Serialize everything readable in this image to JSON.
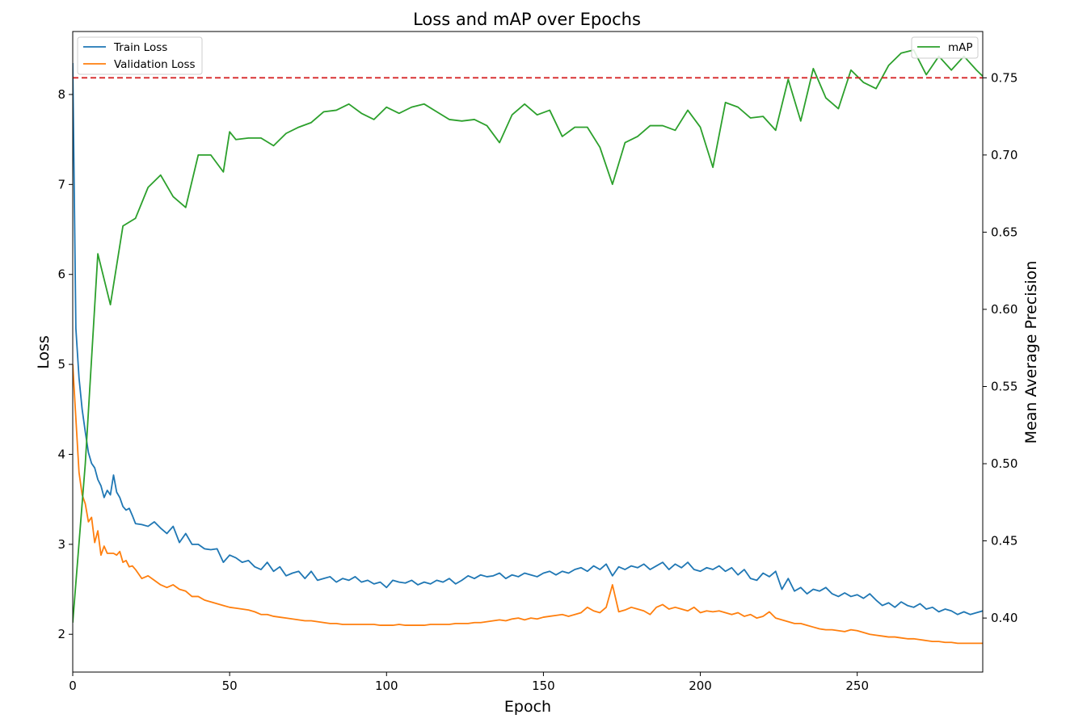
{
  "chart_data": {
    "type": "line",
    "title": "Loss and mAP over Epochs",
    "xlabel": "Epoch",
    "ylabel_left": "Loss",
    "ylabel_right": "Mean Average Precision",
    "xlim": [
      0,
      290
    ],
    "ylim_left": [
      1.58,
      8.7
    ],
    "ylim_right": [
      0.365,
      0.78
    ],
    "xticks": [
      0,
      50,
      100,
      150,
      200,
      250
    ],
    "yticks_left": [
      2,
      3,
      4,
      5,
      6,
      7,
      8
    ],
    "yticks_right": [
      0.4,
      0.45,
      0.5,
      0.55,
      0.6,
      0.65,
      0.7,
      0.75
    ],
    "ytick_labels_right": [
      "0.40",
      "0.45",
      "0.50",
      "0.55",
      "0.60",
      "0.65",
      "0.70",
      "0.75"
    ],
    "grid": false,
    "legend_left_position": "upper-left",
    "legend_right_position": "upper-right",
    "reference_line": {
      "axis": "right",
      "y": 0.75,
      "color": "#d62728",
      "style": "dashed"
    },
    "series_left": [
      {
        "name": "Train Loss",
        "color": "#1f77b4",
        "x": [
          0,
          1,
          2,
          3,
          4,
          5,
          6,
          7,
          8,
          9,
          10,
          11,
          12,
          13,
          14,
          15,
          16,
          17,
          18,
          19,
          20,
          22,
          24,
          26,
          28,
          30,
          32,
          34,
          36,
          38,
          40,
          42,
          44,
          46,
          48,
          50,
          52,
          54,
          56,
          58,
          60,
          62,
          64,
          66,
          68,
          70,
          72,
          74,
          76,
          78,
          80,
          82,
          84,
          86,
          88,
          90,
          92,
          94,
          96,
          98,
          100,
          102,
          104,
          106,
          108,
          110,
          112,
          114,
          116,
          118,
          120,
          122,
          124,
          126,
          128,
          130,
          132,
          134,
          136,
          138,
          140,
          142,
          144,
          146,
          148,
          150,
          152,
          154,
          156,
          158,
          160,
          162,
          164,
          166,
          168,
          170,
          172,
          174,
          176,
          178,
          180,
          182,
          184,
          186,
          188,
          190,
          192,
          194,
          196,
          198,
          200,
          202,
          204,
          206,
          208,
          210,
          212,
          214,
          216,
          218,
          220,
          222,
          224,
          226,
          228,
          230,
          232,
          234,
          236,
          238,
          240,
          242,
          244,
          246,
          248,
          250,
          252,
          254,
          256,
          258,
          260,
          262,
          264,
          266,
          268,
          270,
          272,
          274,
          276,
          278,
          280,
          282,
          284,
          286,
          288,
          290
        ],
        "y": [
          8.35,
          5.4,
          4.85,
          4.5,
          4.25,
          4.02,
          3.9,
          3.85,
          3.72,
          3.65,
          3.52,
          3.6,
          3.55,
          3.77,
          3.58,
          3.52,
          3.42,
          3.38,
          3.4,
          3.32,
          3.23,
          3.22,
          3.2,
          3.25,
          3.18,
          3.12,
          3.2,
          3.02,
          3.12,
          3.0,
          3.0,
          2.95,
          2.94,
          2.95,
          2.8,
          2.88,
          2.85,
          2.8,
          2.82,
          2.75,
          2.72,
          2.8,
          2.7,
          2.75,
          2.65,
          2.68,
          2.7,
          2.62,
          2.7,
          2.6,
          2.62,
          2.64,
          2.58,
          2.62,
          2.6,
          2.64,
          2.58,
          2.6,
          2.56,
          2.58,
          2.52,
          2.6,
          2.58,
          2.57,
          2.6,
          2.55,
          2.58,
          2.56,
          2.6,
          2.58,
          2.62,
          2.56,
          2.6,
          2.65,
          2.62,
          2.66,
          2.64,
          2.65,
          2.68,
          2.62,
          2.66,
          2.64,
          2.68,
          2.66,
          2.64,
          2.68,
          2.7,
          2.66,
          2.7,
          2.68,
          2.72,
          2.74,
          2.7,
          2.76,
          2.72,
          2.78,
          2.65,
          2.75,
          2.72,
          2.76,
          2.74,
          2.78,
          2.72,
          2.76,
          2.8,
          2.72,
          2.78,
          2.74,
          2.8,
          2.72,
          2.7,
          2.74,
          2.72,
          2.76,
          2.7,
          2.74,
          2.66,
          2.72,
          2.62,
          2.6,
          2.68,
          2.64,
          2.7,
          2.5,
          2.62,
          2.48,
          2.52,
          2.45,
          2.5,
          2.48,
          2.52,
          2.45,
          2.42,
          2.46,
          2.42,
          2.44,
          2.4,
          2.45,
          2.38,
          2.32,
          2.35,
          2.3,
          2.36,
          2.32,
          2.3,
          2.34,
          2.28,
          2.3,
          2.25,
          2.28,
          2.26,
          2.22,
          2.25,
          2.22,
          2.24,
          2.26
        ]
      },
      {
        "name": "Validation Loss",
        "color": "#ff7f0e",
        "x": [
          0,
          1,
          2,
          3,
          4,
          5,
          6,
          7,
          8,
          9,
          10,
          11,
          12,
          13,
          14,
          15,
          16,
          17,
          18,
          19,
          20,
          22,
          24,
          26,
          28,
          30,
          32,
          34,
          36,
          38,
          40,
          42,
          44,
          46,
          48,
          50,
          52,
          54,
          56,
          58,
          60,
          62,
          64,
          66,
          68,
          70,
          72,
          74,
          76,
          78,
          80,
          82,
          84,
          86,
          88,
          90,
          92,
          94,
          96,
          98,
          100,
          102,
          104,
          106,
          108,
          110,
          112,
          114,
          116,
          118,
          120,
          122,
          124,
          126,
          128,
          130,
          132,
          134,
          136,
          138,
          140,
          142,
          144,
          146,
          148,
          150,
          152,
          154,
          156,
          158,
          160,
          162,
          164,
          166,
          168,
          170,
          172,
          174,
          176,
          178,
          180,
          182,
          184,
          186,
          188,
          190,
          192,
          194,
          196,
          198,
          200,
          202,
          204,
          206,
          208,
          210,
          212,
          214,
          216,
          218,
          220,
          222,
          224,
          226,
          228,
          230,
          232,
          234,
          236,
          238,
          240,
          242,
          244,
          246,
          248,
          250,
          252,
          254,
          256,
          258,
          260,
          262,
          264,
          266,
          268,
          270,
          272,
          274,
          276,
          278,
          280,
          282,
          284,
          286,
          288,
          290
        ],
        "y": [
          5.0,
          4.4,
          3.8,
          3.55,
          3.45,
          3.25,
          3.3,
          3.02,
          3.15,
          2.88,
          2.98,
          2.9,
          2.9,
          2.9,
          2.88,
          2.92,
          2.8,
          2.82,
          2.75,
          2.76,
          2.72,
          2.62,
          2.65,
          2.6,
          2.55,
          2.52,
          2.55,
          2.5,
          2.48,
          2.42,
          2.42,
          2.38,
          2.36,
          2.34,
          2.32,
          2.3,
          2.29,
          2.28,
          2.27,
          2.25,
          2.22,
          2.22,
          2.2,
          2.19,
          2.18,
          2.17,
          2.16,
          2.15,
          2.15,
          2.14,
          2.13,
          2.12,
          2.12,
          2.11,
          2.11,
          2.11,
          2.11,
          2.11,
          2.11,
          2.1,
          2.1,
          2.1,
          2.11,
          2.1,
          2.1,
          2.1,
          2.1,
          2.11,
          2.11,
          2.11,
          2.11,
          2.12,
          2.12,
          2.12,
          2.13,
          2.13,
          2.14,
          2.15,
          2.16,
          2.15,
          2.17,
          2.18,
          2.16,
          2.18,
          2.17,
          2.19,
          2.2,
          2.21,
          2.22,
          2.2,
          2.22,
          2.24,
          2.3,
          2.26,
          2.24,
          2.3,
          2.55,
          2.25,
          2.27,
          2.3,
          2.28,
          2.26,
          2.22,
          2.3,
          2.33,
          2.28,
          2.3,
          2.28,
          2.26,
          2.3,
          2.24,
          2.26,
          2.25,
          2.26,
          2.24,
          2.22,
          2.24,
          2.2,
          2.22,
          2.18,
          2.2,
          2.25,
          2.18,
          2.16,
          2.14,
          2.12,
          2.12,
          2.1,
          2.08,
          2.06,
          2.05,
          2.05,
          2.04,
          2.03,
          2.05,
          2.04,
          2.02,
          2.0,
          1.99,
          1.98,
          1.97,
          1.97,
          1.96,
          1.95,
          1.95,
          1.94,
          1.93,
          1.92,
          1.92,
          1.91,
          1.91,
          1.9,
          1.9,
          1.9,
          1.9,
          1.9
        ]
      }
    ],
    "series_right": [
      {
        "name": "mAP",
        "color": "#2ca02c",
        "x": [
          0,
          4,
          8,
          12,
          16,
          20,
          24,
          28,
          32,
          36,
          40,
          44,
          48,
          50,
          52,
          56,
          60,
          64,
          68,
          72,
          76,
          80,
          84,
          88,
          92,
          96,
          100,
          104,
          108,
          112,
          116,
          120,
          124,
          128,
          132,
          136,
          140,
          144,
          148,
          152,
          156,
          160,
          164,
          168,
          172,
          176,
          180,
          184,
          188,
          192,
          196,
          200,
          204,
          208,
          212,
          216,
          220,
          224,
          228,
          232,
          236,
          240,
          244,
          248,
          252,
          256,
          260,
          264,
          268,
          272,
          276,
          280,
          284,
          288,
          290
        ],
        "y": [
          0.397,
          0.5,
          0.636,
          0.603,
          0.654,
          0.659,
          0.679,
          0.687,
          0.673,
          0.666,
          0.7,
          0.7,
          0.689,
          0.715,
          0.71,
          0.711,
          0.711,
          0.706,
          0.714,
          0.718,
          0.721,
          0.728,
          0.729,
          0.733,
          0.727,
          0.723,
          0.731,
          0.727,
          0.731,
          0.733,
          0.728,
          0.723,
          0.722,
          0.723,
          0.719,
          0.708,
          0.726,
          0.733,
          0.726,
          0.729,
          0.712,
          0.718,
          0.718,
          0.705,
          0.681,
          0.708,
          0.712,
          0.719,
          0.719,
          0.716,
          0.729,
          0.718,
          0.692,
          0.734,
          0.731,
          0.724,
          0.725,
          0.716,
          0.749,
          0.722,
          0.756,
          0.737,
          0.73,
          0.755,
          0.747,
          0.743,
          0.758,
          0.766,
          0.768,
          0.752,
          0.764,
          0.755,
          0.764,
          0.755,
          0.751
        ]
      }
    ]
  }
}
